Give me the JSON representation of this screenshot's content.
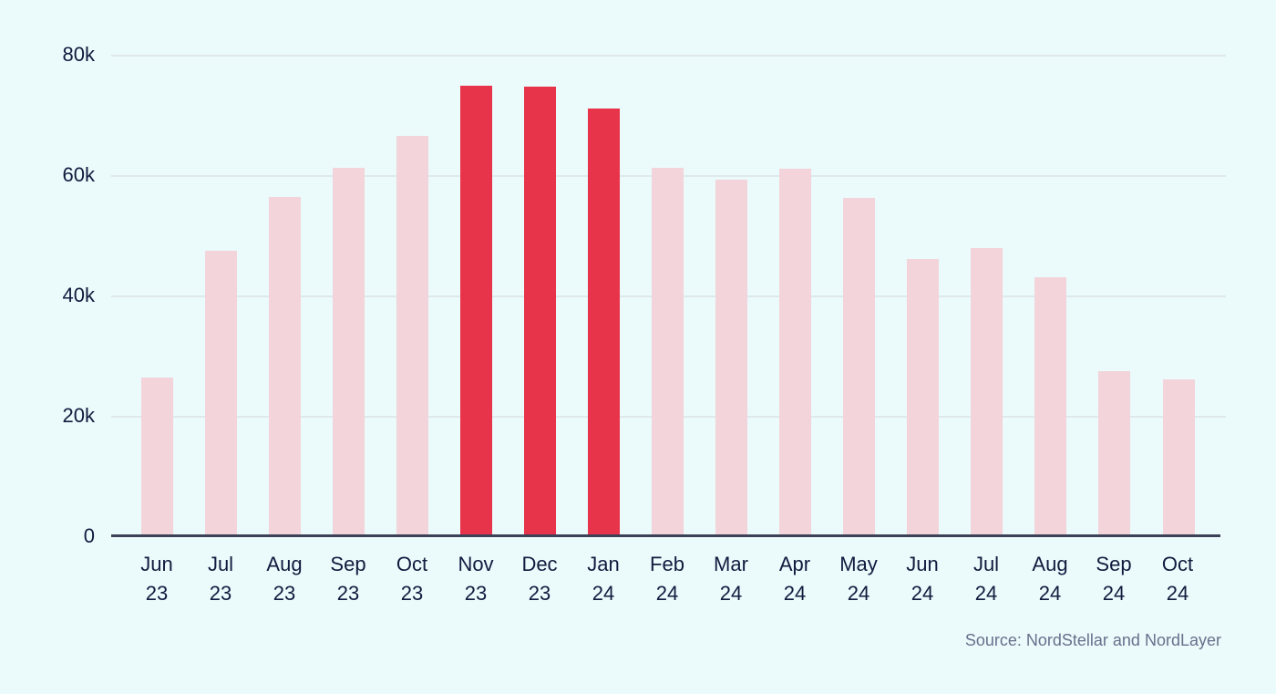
{
  "source": "Source: NordStellar and NordLayer",
  "colors": {
    "background": "#ebfafb",
    "bar": "#f3d4da",
    "bar_highlight": "#e8344b",
    "axis_text": "#111b3e",
    "axis_line": "#3b4157",
    "gridline": "#dfe8ed",
    "source_text": "#67718c"
  },
  "chart_data": {
    "type": "bar",
    "title": "",
    "xlabel": "",
    "ylabel": "",
    "categories": [
      "Jun 23",
      "Jul 23",
      "Aug 23",
      "Sep 23",
      "Oct 23",
      "Nov 23",
      "Dec 23",
      "Jan 24",
      "Feb 24",
      "Mar 24",
      "Apr 24",
      "May 24",
      "Jun 24",
      "Jul 24",
      "Aug 24",
      "Sep 24",
      "Oct 24"
    ],
    "values": [
      26400,
      47400,
      56400,
      61200,
      66500,
      74800,
      74700,
      71100,
      61200,
      59200,
      61000,
      56200,
      46000,
      47900,
      43000,
      27400,
      26100
    ],
    "highlighted_categories": [
      "Nov 23",
      "Dec 23",
      "Jan 24"
    ],
    "ylim": [
      0,
      80000
    ],
    "y_ticks": [
      {
        "label": "0",
        "value": 0
      },
      {
        "label": "20k",
        "value": 20000
      },
      {
        "label": "40k",
        "value": 40000
      },
      {
        "label": "60k",
        "value": 60000
      },
      {
        "label": "80k",
        "value": 80000
      }
    ],
    "grid": true,
    "legend": false
  }
}
